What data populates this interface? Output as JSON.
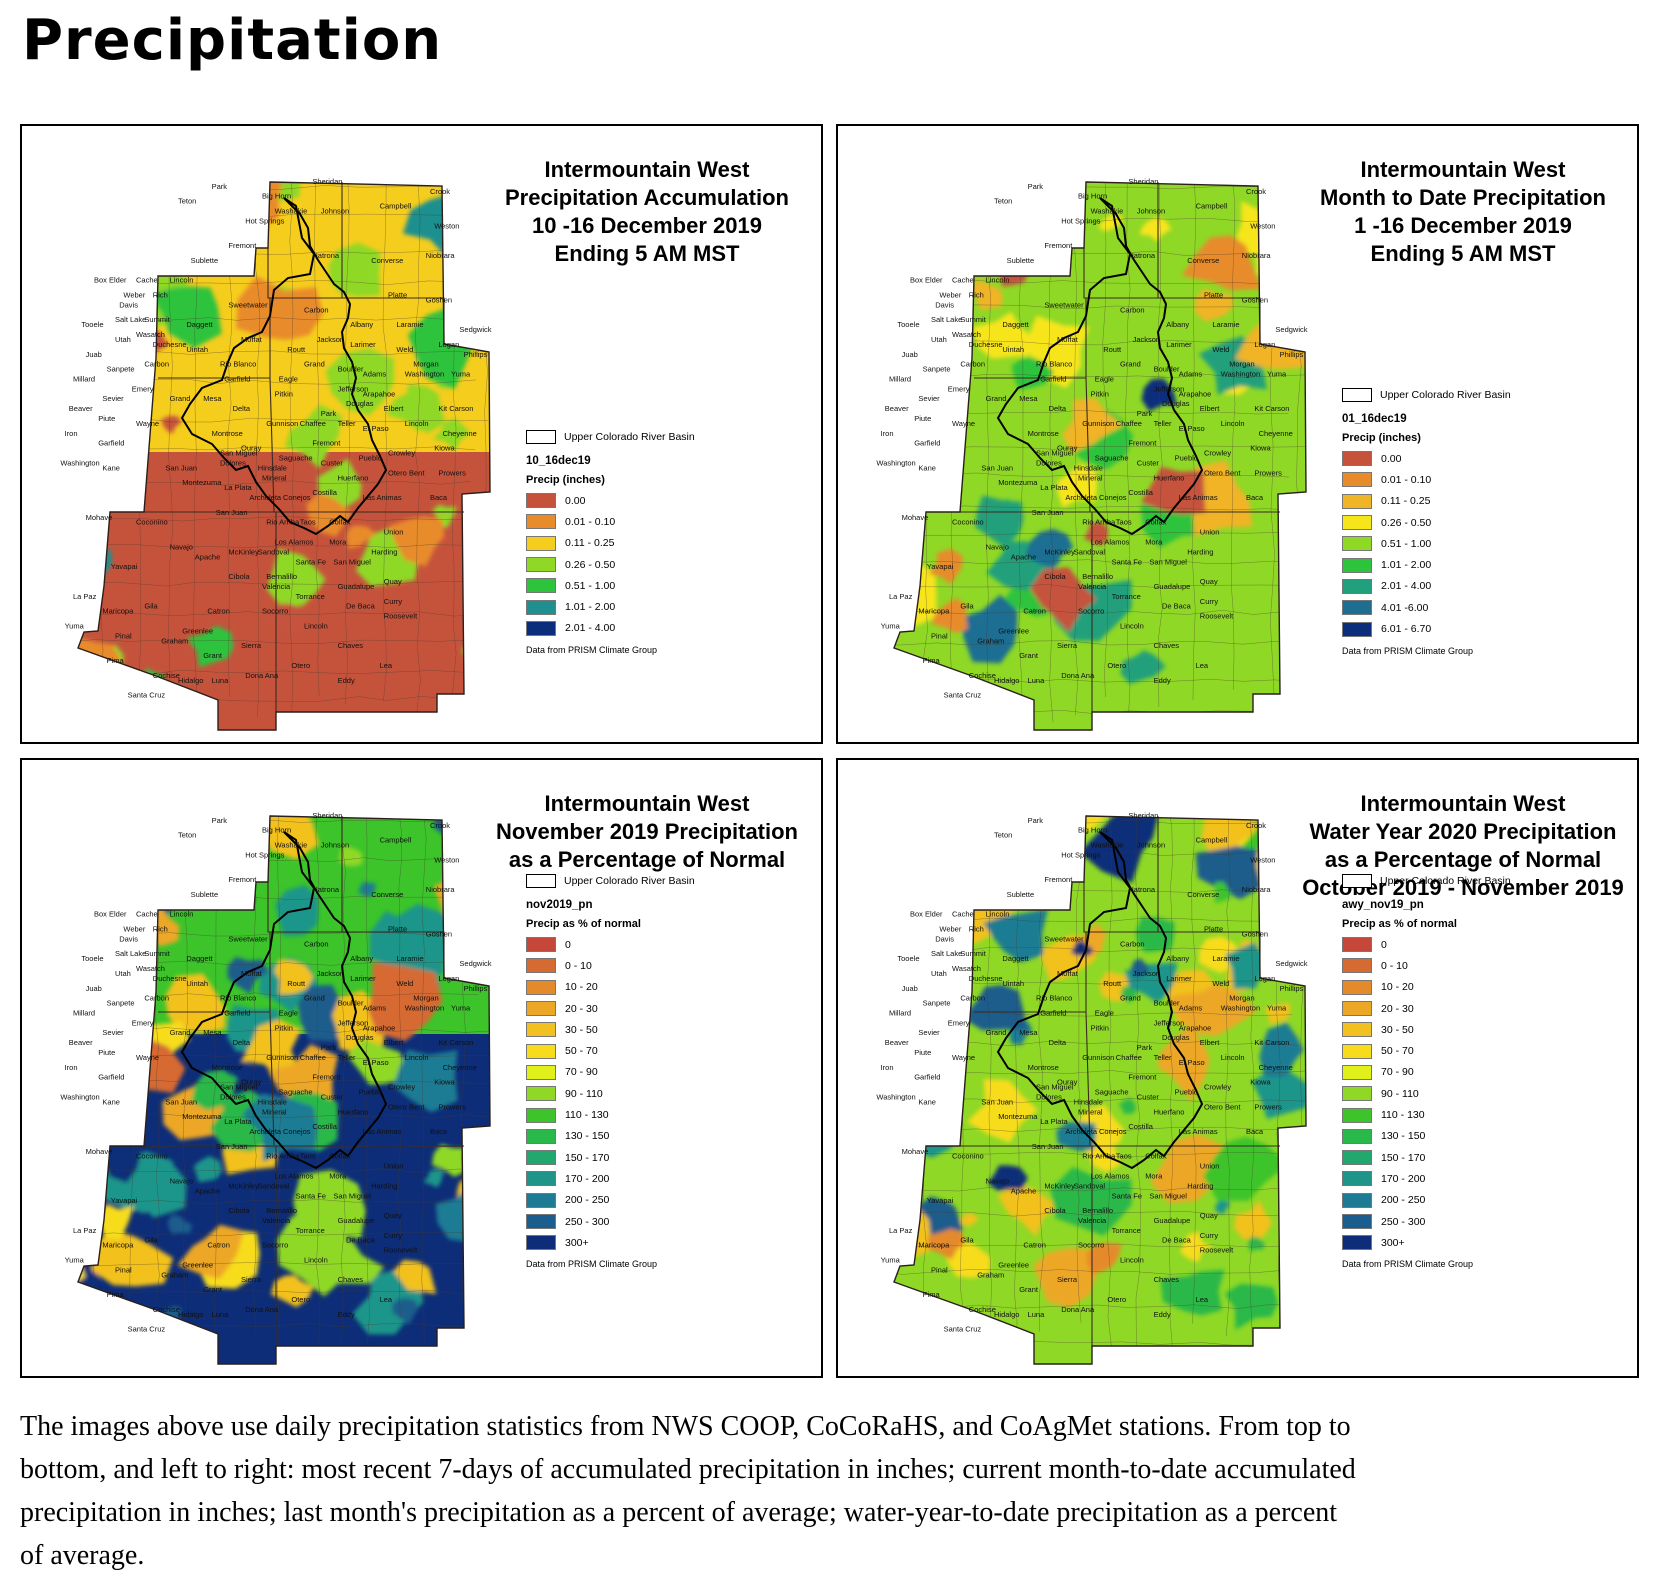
{
  "page": {
    "title": "Precipitation",
    "caption": "The images above use daily precipitation statistics from NWS COOP, CoCoRaHS, and CoAgMet stations. From top to bottom, and left to right: most recent 7-days of accumulated precipitation in inches; current month-to-date accumulated precipitation in inches; last month's precipitation as a percent of average; water-year-to-date precipitation as a percent of average."
  },
  "county_labels": [
    {
      "name": "Park",
      "u": 0.38,
      "v": 0.03
    },
    {
      "name": "Sheridan",
      "u": 0.62,
      "v": 0.02
    },
    {
      "name": "Crook",
      "u": 0.9,
      "v": 0.04
    },
    {
      "name": "Big Horn",
      "u": 0.5,
      "v": 0.05
    },
    {
      "name": "Teton",
      "u": 0.3,
      "v": 0.06
    },
    {
      "name": "Washakie",
      "u": 0.53,
      "v": 0.08
    },
    {
      "name": "Johnson",
      "u": 0.64,
      "v": 0.08
    },
    {
      "name": "Campbell",
      "u": 0.78,
      "v": 0.07
    },
    {
      "name": "Hot Springs",
      "u": 0.46,
      "v": 0.1
    },
    {
      "name": "Weston",
      "u": 0.91,
      "v": 0.11
    },
    {
      "name": "Fremont",
      "u": 0.42,
      "v": 0.15
    },
    {
      "name": "Natrona",
      "u": 0.62,
      "v": 0.17
    },
    {
      "name": "Converse",
      "u": 0.76,
      "v": 0.18
    },
    {
      "name": "Niobrara",
      "u": 0.89,
      "v": 0.17
    },
    {
      "name": "Sublette",
      "u": 0.33,
      "v": 0.18
    },
    {
      "name": "Lincoln",
      "u": 0.28,
      "v": 0.22
    },
    {
      "name": "Sweetwater",
      "u": 0.42,
      "v": 0.27
    },
    {
      "name": "Carbon",
      "u": 0.6,
      "v": 0.28
    },
    {
      "name": "Platte",
      "u": 0.8,
      "v": 0.25
    },
    {
      "name": "Goshen",
      "u": 0.89,
      "v": 0.26
    },
    {
      "name": "Albany",
      "u": 0.71,
      "v": 0.31
    },
    {
      "name": "Laramie",
      "u": 0.82,
      "v": 0.31
    },
    {
      "name": "Box Elder",
      "u": 0.1,
      "v": 0.22
    },
    {
      "name": "Cache",
      "u": 0.2,
      "v": 0.22
    },
    {
      "name": "Rich",
      "u": 0.24,
      "v": 0.25
    },
    {
      "name": "Weber",
      "u": 0.17,
      "v": 0.25
    },
    {
      "name": "Davis",
      "u": 0.16,
      "v": 0.27
    },
    {
      "name": "Tooele",
      "u": 0.07,
      "v": 0.31
    },
    {
      "name": "Salt Lake",
      "u": 0.15,
      "v": 0.3
    },
    {
      "name": "Summit",
      "u": 0.22,
      "v": 0.3
    },
    {
      "name": "Daggett",
      "u": 0.32,
      "v": 0.31
    },
    {
      "name": "Utah",
      "u": 0.15,
      "v": 0.34
    },
    {
      "name": "Wasatch",
      "u": 0.2,
      "v": 0.33
    },
    {
      "name": "Duchesne",
      "u": 0.24,
      "v": 0.35
    },
    {
      "name": "Uintah",
      "u": 0.32,
      "v": 0.36
    },
    {
      "name": "Moffat",
      "u": 0.45,
      "v": 0.34
    },
    {
      "name": "Routt",
      "u": 0.56,
      "v": 0.36
    },
    {
      "name": "Jackson",
      "u": 0.63,
      "v": 0.34
    },
    {
      "name": "Larimer",
      "u": 0.71,
      "v": 0.35
    },
    {
      "name": "Weld",
      "u": 0.82,
      "v": 0.36
    },
    {
      "name": "Logan",
      "u": 0.92,
      "v": 0.35
    },
    {
      "name": "Sedgwick",
      "u": 0.97,
      "v": 0.32
    },
    {
      "name": "Phillips",
      "u": 0.98,
      "v": 0.37
    },
    {
      "name": "Juab",
      "u": 0.08,
      "v": 0.37
    },
    {
      "name": "Sanpete",
      "u": 0.13,
      "v": 0.4
    },
    {
      "name": "Carbon",
      "u": 0.22,
      "v": 0.39
    },
    {
      "name": "Rio Blanco",
      "u": 0.4,
      "v": 0.39
    },
    {
      "name": "Grand",
      "u": 0.6,
      "v": 0.39
    },
    {
      "name": "Boulder",
      "u": 0.68,
      "v": 0.4
    },
    {
      "name": "Morgan",
      "u": 0.86,
      "v": 0.39
    },
    {
      "name": "Millard",
      "u": 0.05,
      "v": 0.42
    },
    {
      "name": "Emery",
      "u": 0.19,
      "v": 0.44
    },
    {
      "name": "Garfield",
      "u": 0.41,
      "v": 0.42
    },
    {
      "name": "Eagle",
      "u": 0.54,
      "v": 0.42
    },
    {
      "name": "Adams",
      "u": 0.74,
      "v": 0.41
    },
    {
      "name": "Washington",
      "u": 0.84,
      "v": 0.41
    },
    {
      "name": "Yuma",
      "u": 0.95,
      "v": 0.41
    },
    {
      "name": "Sevier",
      "u": 0.12,
      "v": 0.46
    },
    {
      "name": "Grand",
      "u": 0.28,
      "v": 0.46
    },
    {
      "name": "Mesa",
      "u": 0.36,
      "v": 0.46
    },
    {
      "name": "Pitkin",
      "u": 0.53,
      "v": 0.45
    },
    {
      "name": "Jefferson",
      "u": 0.68,
      "v": 0.44
    },
    {
      "name": "Arapahoe",
      "u": 0.74,
      "v": 0.45
    },
    {
      "name": "Douglas",
      "u": 0.7,
      "v": 0.47
    },
    {
      "name": "Elbert",
      "u": 0.79,
      "v": 0.48
    },
    {
      "name": "Kit Carson",
      "u": 0.92,
      "v": 0.48
    },
    {
      "name": "Beaver",
      "u": 0.04,
      "v": 0.48
    },
    {
      "name": "Piute",
      "u": 0.11,
      "v": 0.5
    },
    {
      "name": "Wayne",
      "u": 0.2,
      "v": 0.51
    },
    {
      "name": "Delta",
      "u": 0.43,
      "v": 0.48
    },
    {
      "name": "Gunnison",
      "u": 0.51,
      "v": 0.51
    },
    {
      "name": "Chaffee",
      "u": 0.59,
      "v": 0.51
    },
    {
      "name": "Park",
      "u": 0.64,
      "v": 0.49
    },
    {
      "name": "Teller",
      "u": 0.68,
      "v": 0.51
    },
    {
      "name": "El Paso",
      "u": 0.74,
      "v": 0.52
    },
    {
      "name": "Lincoln",
      "u": 0.84,
      "v": 0.51
    },
    {
      "name": "Cheyenne",
      "u": 0.93,
      "v": 0.53
    },
    {
      "name": "Iron",
      "u": 0.03,
      "v": 0.53
    },
    {
      "name": "Garfield",
      "u": 0.11,
      "v": 0.55
    },
    {
      "name": "Montrose",
      "u": 0.38,
      "v": 0.53
    },
    {
      "name": "Fremont",
      "u": 0.62,
      "v": 0.55
    },
    {
      "name": "Ouray",
      "u": 0.45,
      "v": 0.56
    },
    {
      "name": "Saguache",
      "u": 0.54,
      "v": 0.58
    },
    {
      "name": "Pueblo",
      "u": 0.73,
      "v": 0.58
    },
    {
      "name": "Crowley",
      "u": 0.8,
      "v": 0.57
    },
    {
      "name": "Kiowa",
      "u": 0.91,
      "v": 0.56
    },
    {
      "name": "Washington",
      "u": 0.02,
      "v": 0.59
    },
    {
      "name": "Kane",
      "u": 0.12,
      "v": 0.6
    },
    {
      "name": "San Juan",
      "u": 0.27,
      "v": 0.6
    },
    {
      "name": "San Miguel",
      "u": 0.4,
      "v": 0.57
    },
    {
      "name": "Dolores",
      "u": 0.4,
      "v": 0.59
    },
    {
      "name": "Hinsdale",
      "u": 0.49,
      "v": 0.6
    },
    {
      "name": "Custer",
      "u": 0.64,
      "v": 0.59
    },
    {
      "name": "Otero",
      "u": 0.8,
      "v": 0.61
    },
    {
      "name": "Bent",
      "u": 0.85,
      "v": 0.61
    },
    {
      "name": "Prowers",
      "u": 0.92,
      "v": 0.61
    },
    {
      "name": "Montezuma",
      "u": 0.31,
      "v": 0.63
    },
    {
      "name": "La Plata",
      "u": 0.41,
      "v": 0.64
    },
    {
      "name": "Mineral",
      "u": 0.5,
      "v": 0.62
    },
    {
      "name": "Huerfano",
      "u": 0.68,
      "v": 0.62
    },
    {
      "name": "Archuleta",
      "u": 0.47,
      "v": 0.66
    },
    {
      "name": "Conejos",
      "u": 0.55,
      "v": 0.66
    },
    {
      "name": "Costilla",
      "u": 0.62,
      "v": 0.65
    },
    {
      "name": "Las Animas",
      "u": 0.74,
      "v": 0.66
    },
    {
      "name": "Baca",
      "u": 0.9,
      "v": 0.66
    },
    {
      "name": "Mohave",
      "u": 0.08,
      "v": 0.7
    },
    {
      "name": "Coconino",
      "u": 0.2,
      "v": 0.71
    },
    {
      "name": "San Juan",
      "u": 0.39,
      "v": 0.69
    },
    {
      "name": "Rio Arriba",
      "u": 0.51,
      "v": 0.71
    },
    {
      "name": "Taos",
      "u": 0.59,
      "v": 0.71
    },
    {
      "name": "Colfax",
      "u": 0.66,
      "v": 0.71
    },
    {
      "name": "Union",
      "u": 0.79,
      "v": 0.73
    },
    {
      "name": "Navajo",
      "u": 0.28,
      "v": 0.76
    },
    {
      "name": "McKinley",
      "u": 0.42,
      "v": 0.77
    },
    {
      "name": "Sandoval",
      "u": 0.49,
      "v": 0.77
    },
    {
      "name": "Los Alamos",
      "u": 0.53,
      "v": 0.75
    },
    {
      "name": "Mora",
      "u": 0.66,
      "v": 0.75
    },
    {
      "name": "Harding",
      "u": 0.76,
      "v": 0.77
    },
    {
      "name": "Yavapai",
      "u": 0.14,
      "v": 0.8
    },
    {
      "name": "Santa Fe",
      "u": 0.58,
      "v": 0.79
    },
    {
      "name": "San Miguel",
      "u": 0.67,
      "v": 0.79
    },
    {
      "name": "Apache",
      "u": 0.34,
      "v": 0.78
    },
    {
      "name": "Cibola",
      "u": 0.42,
      "v": 0.82
    },
    {
      "name": "Bernalillo",
      "u": 0.51,
      "v": 0.82
    },
    {
      "name": "Guadalupe",
      "u": 0.68,
      "v": 0.84
    },
    {
      "name": "Quay",
      "u": 0.79,
      "v": 0.83
    },
    {
      "name": "Valencia",
      "u": 0.5,
      "v": 0.84
    },
    {
      "name": "Torrance",
      "u": 0.58,
      "v": 0.86
    },
    {
      "name": "Curry",
      "u": 0.79,
      "v": 0.87
    },
    {
      "name": "La Paz",
      "u": 0.05,
      "v": 0.86
    },
    {
      "name": "Maricopa",
      "u": 0.12,
      "v": 0.89
    },
    {
      "name": "Gila",
      "u": 0.22,
      "v": 0.88
    },
    {
      "name": "Catron",
      "u": 0.37,
      "v": 0.89
    },
    {
      "name": "Socorro",
      "u": 0.5,
      "v": 0.89
    },
    {
      "name": "De Baca",
      "u": 0.7,
      "v": 0.88
    },
    {
      "name": "Roosevelt",
      "u": 0.79,
      "v": 0.9
    },
    {
      "name": "Yuma",
      "u": 0.03,
      "v": 0.92
    },
    {
      "name": "Pinal",
      "u": 0.15,
      "v": 0.94
    },
    {
      "name": "Graham",
      "u": 0.26,
      "v": 0.95
    },
    {
      "name": "Greenlee",
      "u": 0.31,
      "v": 0.93
    },
    {
      "name": "Lincoln",
      "u": 0.6,
      "v": 0.92
    },
    {
      "name": "Sierra",
      "u": 0.45,
      "v": 0.96
    },
    {
      "name": "Grant",
      "u": 0.36,
      "v": 0.98
    },
    {
      "name": "Chaves",
      "u": 0.68,
      "v": 0.96
    },
    {
      "name": "Pima",
      "u": 0.13,
      "v": 0.99
    },
    {
      "name": "Otero",
      "u": 0.57,
      "v": 1.0
    },
    {
      "name": "Lea",
      "u": 0.78,
      "v": 1.0
    },
    {
      "name": "Cochise",
      "u": 0.24,
      "v": 1.02
    },
    {
      "name": "Hidalgo",
      "u": 0.3,
      "v": 1.03
    },
    {
      "name": "Luna",
      "u": 0.38,
      "v": 1.03
    },
    {
      "name": "Dona Ana",
      "u": 0.46,
      "v": 1.02
    },
    {
      "name": "Eddy",
      "u": 0.68,
      "v": 1.03
    },
    {
      "name": "Santa Cruz",
      "u": 0.18,
      "v": 1.06
    }
  ],
  "panels": [
    {
      "title_lines": [
        "Intermountain West",
        "Precipitation Accumulation",
        "10 -16 December 2019",
        "Ending 5 AM MST"
      ],
      "basin_label": "Upper Colorado River Basin",
      "layer_name": "10_16dec19",
      "unit_label": "Precip (inches)",
      "credit": "Data from PRISM Climate Group",
      "legend": [
        {
          "label": "0.00",
          "color": "#c5533c"
        },
        {
          "label": "0.01 - 0.10",
          "color": "#e88b2a"
        },
        {
          "label": "0.11 - 0.25",
          "color": "#f5cd1d"
        },
        {
          "label": "0.26 - 0.50",
          "color": "#8fd826"
        },
        {
          "label": "0.51 - 1.00",
          "color": "#2ec33d"
        },
        {
          "label": "1.01 - 2.00",
          "color": "#1f8f8f"
        },
        {
          "label": "2.01 - 4.00",
          "color": "#0a2d7c"
        }
      ]
    },
    {
      "title_lines": [
        "Intermountain West",
        "Month to Date Precipitation",
        "1 -16 December 2019",
        "Ending 5 AM MST"
      ],
      "basin_label": "Upper Colorado River Basin",
      "layer_name": "01_16dec19",
      "unit_label": "Precip (inches)",
      "credit": "Data from PRISM Climate Group",
      "legend": [
        {
          "label": "0.00",
          "color": "#c5533c"
        },
        {
          "label": "0.01 - 0.10",
          "color": "#e88b2a"
        },
        {
          "label": "0.11 - 0.25",
          "color": "#f0b427"
        },
        {
          "label": "0.26 - 0.50",
          "color": "#f7e51b"
        },
        {
          "label": "0.51 - 1.00",
          "color": "#8fd826"
        },
        {
          "label": "1.01 - 2.00",
          "color": "#2ec33d"
        },
        {
          "label": "2.01 - 4.00",
          "color": "#20a07c"
        },
        {
          "label": "4.01 -6.00",
          "color": "#1e6e92"
        },
        {
          "label": "6.01 - 6.70",
          "color": "#0a2d7c"
        }
      ]
    },
    {
      "title_lines": [
        "Intermountain West",
        "November 2019 Precipitation",
        "as a Percentage of Normal"
      ],
      "basin_label": "Upper Colorado River Basin",
      "layer_name": "nov2019_pn",
      "unit_label": "Precip as % of normal",
      "credit": "Data from PRISM Climate Group",
      "legend": [
        {
          "label": "0",
          "color": "#c4473a"
        },
        {
          "label": "0 - 10",
          "color": "#d66a33"
        },
        {
          "label": "10 - 20",
          "color": "#e58a2b"
        },
        {
          "label": "20 - 30",
          "color": "#eda726"
        },
        {
          "label": "30 - 50",
          "color": "#f2c11f"
        },
        {
          "label": "50 - 70",
          "color": "#f7dc1e"
        },
        {
          "label": "70 - 90",
          "color": "#e0f01b"
        },
        {
          "label": "90 - 110",
          "color": "#8fd826"
        },
        {
          "label": "110 - 130",
          "color": "#3cc42a"
        },
        {
          "label": "130 - 150",
          "color": "#29b84a"
        },
        {
          "label": "150 - 170",
          "color": "#22a86e"
        },
        {
          "label": "170 - 200",
          "color": "#1f958a"
        },
        {
          "label": "200 - 250",
          "color": "#1d7c93"
        },
        {
          "label": "250 - 300",
          "color": "#1b5d8c"
        },
        {
          "label": "300+",
          "color": "#0d2d78"
        }
      ]
    },
    {
      "title_lines": [
        "Intermountain West",
        "Water Year 2020 Precipitation",
        "as a Percentage of Normal",
        "October 2019 - November 2019"
      ],
      "basin_label": "Upper Colorado River Basin",
      "layer_name": "awy_nov19_pn",
      "unit_label": "Precip as % of normal",
      "credit": "Data from PRISM Climate Group",
      "legend": [
        {
          "label": "0",
          "color": "#c4473a"
        },
        {
          "label": "0 - 10",
          "color": "#d66a33"
        },
        {
          "label": "10 - 20",
          "color": "#e58a2b"
        },
        {
          "label": "20 - 30",
          "color": "#eda726"
        },
        {
          "label": "30 - 50",
          "color": "#f2c11f"
        },
        {
          "label": "50 - 70",
          "color": "#f7dc1e"
        },
        {
          "label": "70 - 90",
          "color": "#e0f01b"
        },
        {
          "label": "90 - 110",
          "color": "#8fd826"
        },
        {
          "label": "110 - 130",
          "color": "#3cc42a"
        },
        {
          "label": "130 - 150",
          "color": "#29b84a"
        },
        {
          "label": "150 - 170",
          "color": "#22a86e"
        },
        {
          "label": "170 - 200",
          "color": "#1f958a"
        },
        {
          "label": "200 - 250",
          "color": "#1d7c93"
        },
        {
          "label": "250 - 300",
          "color": "#1b5d8c"
        },
        {
          "label": "300+",
          "color": "#0d2d78"
        }
      ]
    }
  ]
}
